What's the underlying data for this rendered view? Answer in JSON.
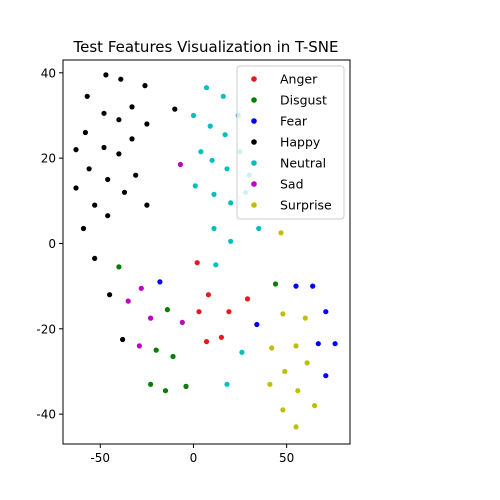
{
  "chart_data": {
    "type": "scatter",
    "title": "Test Features Visualization in T-SNE",
    "xlabel": "",
    "ylabel": "",
    "xlim": [
      -70,
      84
    ],
    "ylim": [
      -47,
      43
    ],
    "xticks": [
      -50,
      0,
      50
    ],
    "yticks": [
      -40,
      -20,
      0,
      20,
      40
    ],
    "grid": false,
    "legend_position": "top-right",
    "series": [
      {
        "name": "Anger",
        "color": "#e41a1c",
        "points": [
          [
            2,
            -4.5
          ],
          [
            8,
            -12
          ],
          [
            3,
            -16
          ],
          [
            19,
            -16
          ],
          [
            29,
            -13
          ],
          [
            15,
            -22
          ],
          [
            7,
            -23
          ]
        ]
      },
      {
        "name": "Disgust",
        "color": "#007f00",
        "points": [
          [
            -40,
            -5.5
          ],
          [
            -14,
            -15.5
          ],
          [
            -20,
            -25
          ],
          [
            -11,
            -26.5
          ],
          [
            -23,
            -33
          ],
          [
            -15,
            -34.5
          ],
          [
            -4,
            -33.5
          ],
          [
            44,
            -9.5
          ]
        ]
      },
      {
        "name": "Fear",
        "color": "#0000ff",
        "points": [
          [
            -18,
            -9
          ],
          [
            34,
            -19
          ],
          [
            55,
            -10
          ],
          [
            64,
            -10
          ],
          [
            71,
            -16
          ],
          [
            67,
            -23.5
          ],
          [
            76,
            -23.5
          ],
          [
            71,
            -31
          ]
        ]
      },
      {
        "name": "Happy",
        "color": "#000000",
        "points": [
          [
            -47,
            39.5
          ],
          [
            -39,
            38.5
          ],
          [
            -26,
            37
          ],
          [
            -57,
            34.5
          ],
          [
            -33,
            32
          ],
          [
            -10,
            31.5
          ],
          [
            -48,
            30.5
          ],
          [
            -40,
            29
          ],
          [
            -25,
            28
          ],
          [
            -58,
            26
          ],
          [
            -33,
            24.5
          ],
          [
            -63,
            22
          ],
          [
            -48,
            22.5
          ],
          [
            -40,
            21
          ],
          [
            -56,
            17.5
          ],
          [
            -31,
            16
          ],
          [
            -46,
            15
          ],
          [
            -63,
            13
          ],
          [
            -37,
            12
          ],
          [
            -53,
            9
          ],
          [
            -25,
            9
          ],
          [
            -46,
            6.5
          ],
          [
            -59,
            3.5
          ],
          [
            -53,
            -3.5
          ],
          [
            -45,
            -12
          ],
          [
            -38,
            -22.5
          ]
        ]
      },
      {
        "name": "Neutral",
        "color": "#00bfbf",
        "points": [
          [
            7,
            36.5
          ],
          [
            16,
            34.5
          ],
          [
            24,
            30
          ],
          [
            0,
            30
          ],
          [
            9,
            27.5
          ],
          [
            17,
            25.5
          ],
          [
            4,
            21.5
          ],
          [
            10,
            19.5
          ],
          [
            25,
            21.5
          ],
          [
            18,
            17.5
          ],
          [
            30,
            16
          ],
          [
            1,
            13.5
          ],
          [
            11,
            11.5
          ],
          [
            28,
            12
          ],
          [
            20,
            9.5
          ],
          [
            11,
            3.5
          ],
          [
            20,
            0.5
          ],
          [
            35,
            3.5
          ],
          [
            12,
            -5
          ],
          [
            26,
            -25.5
          ],
          [
            18,
            -33
          ]
        ]
      },
      {
        "name": "Sad",
        "color": "#bf00bf",
        "points": [
          [
            -7,
            18.5
          ],
          [
            -28,
            -10.5
          ],
          [
            -35,
            -13.5
          ],
          [
            -23,
            -17.5
          ],
          [
            -6,
            -18.5
          ],
          [
            -29,
            -24
          ]
        ]
      },
      {
        "name": "Surprise",
        "color": "#bfbf00",
        "points": [
          [
            47,
            2.5
          ],
          [
            48,
            -16.5
          ],
          [
            60,
            -17.5
          ],
          [
            42,
            -24.5
          ],
          [
            55,
            -24
          ],
          [
            61,
            -28
          ],
          [
            49,
            -30
          ],
          [
            41,
            -33
          ],
          [
            56,
            -34.5
          ],
          [
            48,
            -39
          ],
          [
            65,
            -38
          ],
          [
            55,
            -43
          ]
        ]
      }
    ]
  }
}
